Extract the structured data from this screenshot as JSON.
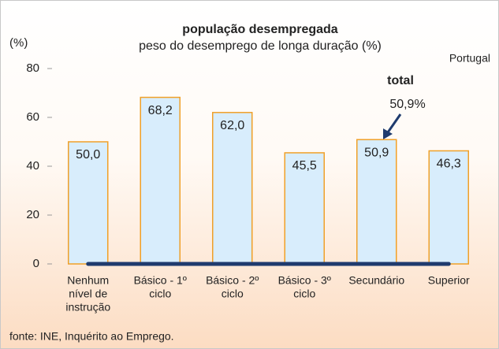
{
  "chart_data": {
    "type": "bar",
    "title": "população desempregada",
    "subtitle": "peso do desemprego de longa duração (%)",
    "y_label": "(%)",
    "region": "Portugal",
    "annotations": [
      "total",
      "50,9%"
    ],
    "source": "fonte: INE, Inquérito ao Emprego.",
    "categories": [
      [
        "Nenhum",
        "nível de",
        "instrução"
      ],
      [
        "Básico - 1º",
        "ciclo"
      ],
      [
        "Básico - 2º",
        "ciclo"
      ],
      [
        "Básico - 3º",
        "ciclo"
      ],
      [
        "Secundário"
      ],
      [
        "Superior"
      ]
    ],
    "values": [
      50.0,
      68.2,
      62.0,
      45.5,
      50.9,
      46.3
    ],
    "value_labels": [
      "50,0",
      "68,2",
      "62,0",
      "45,5",
      "50,9",
      "46,3"
    ],
    "color": "#d8edfc",
    "edge_color": "#f0a028",
    "ylim": [
      0,
      80
    ],
    "yticks": [
      0,
      20,
      40,
      60,
      80
    ],
    "grid": false
  }
}
